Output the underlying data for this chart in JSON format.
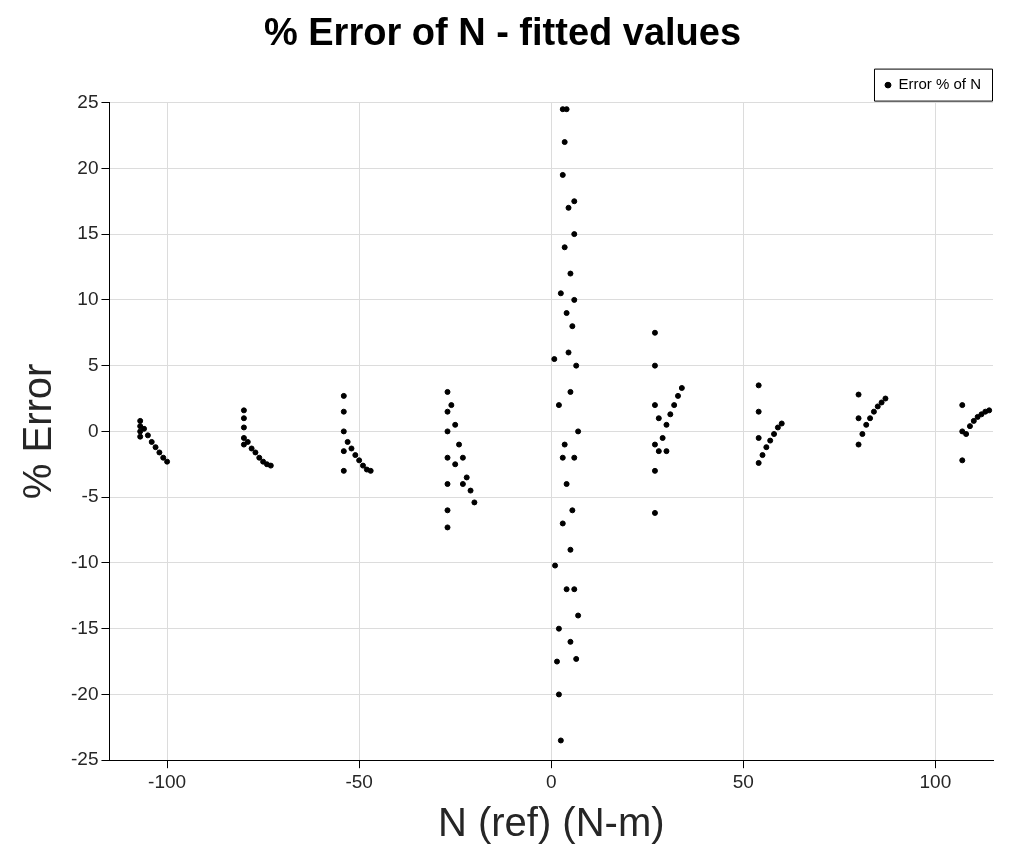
{
  "chart_data": {
    "type": "scatter",
    "title": "% Error of N - fitted values",
    "xlabel": "N (ref) (N-m)",
    "ylabel": "% Error",
    "xlim": [
      -115,
      115
    ],
    "xticks": [
      -100,
      -50,
      0,
      50,
      100
    ],
    "ylim": [
      -25,
      25
    ],
    "yticks": [
      -25,
      -20,
      -15,
      -10,
      -5,
      0,
      5,
      10,
      15,
      20,
      25
    ],
    "grid": true,
    "legend": "top right",
    "marker": "circle",
    "series": [
      {
        "name": "Error % of N",
        "color": "#000000",
        "x": [
          -107,
          -107,
          -107,
          -107,
          -106,
          -105,
          -104,
          -103,
          -102,
          -101,
          -100,
          -80,
          -80,
          -80,
          -80,
          -80,
          -79,
          -78,
          -77,
          -76,
          -75,
          -74,
          -73,
          -54,
          -54,
          -54,
          -54,
          -54,
          -53,
          -52,
          -51,
          -50,
          -49,
          -48,
          -47,
          -27,
          -27,
          -27,
          -27,
          -27,
          -27,
          -27,
          -26,
          -25,
          -24,
          -23,
          -22,
          -21,
          -20,
          -25,
          -23,
          0.8,
          1,
          1.5,
          2,
          2.5,
          2.5,
          3,
          3.5,
          3,
          4,
          4.5,
          3.5,
          4,
          5,
          6,
          6,
          5.5,
          6.5,
          5,
          6,
          4,
          3,
          5,
          6,
          7,
          6.5,
          5,
          4,
          2,
          3,
          2,
          7,
          4.5,
          3.5,
          6,
          5.5,
          27,
          27,
          27,
          27,
          27,
          27,
          28,
          29,
          30,
          31,
          32,
          33,
          34,
          28,
          30,
          54,
          54,
          54,
          54,
          55,
          56,
          57,
          58,
          59,
          60,
          80,
          80,
          80,
          81,
          82,
          83,
          84,
          85,
          86,
          87,
          107,
          107,
          107,
          108,
          109,
          110,
          111,
          112,
          113,
          114
        ],
        "values": [
          0.8,
          0.4,
          0,
          -0.4,
          0.2,
          -0.3,
          -0.8,
          -1.2,
          -1.6,
          -2,
          -2.3,
          1.6,
          1,
          0.3,
          -0.5,
          -1,
          -0.8,
          -1.3,
          -1.6,
          -2,
          -2.3,
          -2.5,
          -2.6,
          2.7,
          1.5,
          0,
          -1.5,
          -3,
          -0.8,
          -1.3,
          -1.8,
          -2.2,
          -2.6,
          -2.9,
          -3,
          3,
          1.5,
          0,
          -2,
          -4,
          -6,
          -7.3,
          2,
          0.5,
          -1,
          -2,
          -3.5,
          -4.5,
          -5.4,
          -2.5,
          -4,
          5.5,
          -10.2,
          -17.5,
          -20,
          -23.5,
          10.5,
          24.5,
          22,
          19.5,
          24.5,
          17,
          14,
          9,
          12,
          17.5,
          15,
          8,
          5,
          3,
          -2,
          -4,
          -7,
          -9,
          -12,
          -14,
          -17.3,
          -16,
          -12,
          -15,
          -2,
          2,
          0,
          6,
          -1,
          10,
          -6,
          7.5,
          5,
          2,
          -1,
          -3,
          -6.2,
          -1.5,
          -0.5,
          0.5,
          1.3,
          2,
          2.7,
          3.3,
          1,
          -1.5,
          3.5,
          1.5,
          -0.5,
          -2.4,
          -1.8,
          -1.2,
          -0.7,
          -0.2,
          0.3,
          0.6,
          2.8,
          1,
          -1,
          -0.2,
          0.5,
          1,
          1.5,
          1.9,
          2.2,
          2.5,
          2,
          0,
          -2.2,
          -0.2,
          0.4,
          0.8,
          1.1,
          1.3,
          1.5,
          1.6
        ]
      }
    ]
  }
}
